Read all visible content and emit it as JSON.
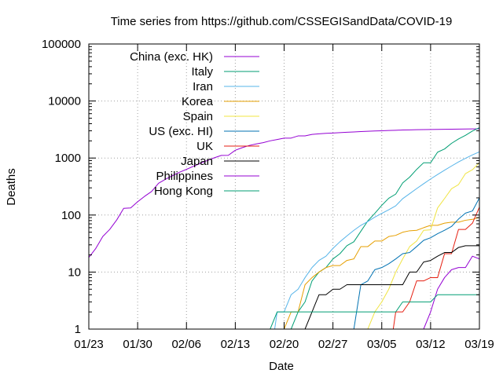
{
  "chart_data": {
    "type": "line",
    "title": "Time series from https://github.com/CSSEGISandData/COVID-19",
    "xlabel": "Date",
    "ylabel": "Deaths",
    "yscale": "log",
    "ylim": [
      1,
      100000
    ],
    "xlim": [
      "2020-01-23",
      "2020-03-19"
    ],
    "grid": true,
    "legend_position": "top-left",
    "x_ticks": [
      {
        "date": "2020-01-23",
        "label": "01/23"
      },
      {
        "date": "2020-01-30",
        "label": "01/30"
      },
      {
        "date": "2020-02-06",
        "label": "02/06"
      },
      {
        "date": "2020-02-13",
        "label": "02/13"
      },
      {
        "date": "2020-02-20",
        "label": "02/20"
      },
      {
        "date": "2020-02-27",
        "label": "02/27"
      },
      {
        "date": "2020-03-05",
        "label": "03/05"
      },
      {
        "date": "2020-03-12",
        "label": "03/12"
      },
      {
        "date": "2020-03-19",
        "label": "03/19"
      }
    ],
    "y_ticks": [
      {
        "value": 1,
        "label": "1"
      },
      {
        "value": 10,
        "label": "10"
      },
      {
        "value": 100,
        "label": "100"
      },
      {
        "value": 1000,
        "label": "1000"
      },
      {
        "value": 10000,
        "label": "10000"
      },
      {
        "value": 100000,
        "label": "100000"
      }
    ],
    "series": [
      {
        "name": "China (exc. HK)",
        "color": "#9400d3",
        "points": [
          [
            "2020-01-23",
            18
          ],
          [
            "2020-01-24",
            26
          ],
          [
            "2020-01-25",
            42
          ],
          [
            "2020-01-26",
            56
          ],
          [
            "2020-01-27",
            82
          ],
          [
            "2020-01-28",
            131
          ],
          [
            "2020-01-29",
            133
          ],
          [
            "2020-01-30",
            171
          ],
          [
            "2020-01-31",
            213
          ],
          [
            "2020-02-01",
            259
          ],
          [
            "2020-02-02",
            361
          ],
          [
            "2020-02-03",
            425
          ],
          [
            "2020-02-04",
            491
          ],
          [
            "2020-02-05",
            563
          ],
          [
            "2020-02-06",
            633
          ],
          [
            "2020-02-07",
            718
          ],
          [
            "2020-02-08",
            805
          ],
          [
            "2020-02-09",
            905
          ],
          [
            "2020-02-10",
            1011
          ],
          [
            "2020-02-11",
            1111
          ],
          [
            "2020-02-12",
            1116
          ],
          [
            "2020-02-13",
            1368
          ],
          [
            "2020-02-14",
            1520
          ],
          [
            "2020-02-15",
            1662
          ],
          [
            "2020-02-16",
            1765
          ],
          [
            "2020-02-17",
            1863
          ],
          [
            "2020-02-18",
            2002
          ],
          [
            "2020-02-19",
            2114
          ],
          [
            "2020-02-20",
            2236
          ],
          [
            "2020-02-21",
            2236
          ],
          [
            "2020-02-22",
            2441
          ],
          [
            "2020-02-23",
            2443
          ],
          [
            "2020-02-24",
            2593
          ],
          [
            "2020-02-25",
            2663
          ],
          [
            "2020-02-26",
            2715
          ],
          [
            "2020-02-27",
            2744
          ],
          [
            "2020-02-28",
            2788
          ],
          [
            "2020-02-29",
            2835
          ],
          [
            "2020-03-01",
            2870
          ],
          [
            "2020-03-02",
            2912
          ],
          [
            "2020-03-03",
            2943
          ],
          [
            "2020-03-04",
            2981
          ],
          [
            "2020-03-05",
            3012
          ],
          [
            "2020-03-06",
            3042
          ],
          [
            "2020-03-07",
            3070
          ],
          [
            "2020-03-08",
            3097
          ],
          [
            "2020-03-09",
            3119
          ],
          [
            "2020-03-10",
            3136
          ],
          [
            "2020-03-11",
            3158
          ],
          [
            "2020-03-12",
            3169
          ],
          [
            "2020-03-13",
            3176
          ],
          [
            "2020-03-14",
            3189
          ],
          [
            "2020-03-15",
            3199
          ],
          [
            "2020-03-16",
            3213
          ],
          [
            "2020-03-17",
            3226
          ],
          [
            "2020-03-18",
            3237
          ],
          [
            "2020-03-19",
            3245
          ]
        ]
      },
      {
        "name": "Italy",
        "color": "#009e73",
        "points": [
          [
            "2020-02-21",
            1
          ],
          [
            "2020-02-22",
            2
          ],
          [
            "2020-02-23",
            3
          ],
          [
            "2020-02-24",
            7
          ],
          [
            "2020-02-25",
            10
          ],
          [
            "2020-02-26",
            12
          ],
          [
            "2020-02-27",
            17
          ],
          [
            "2020-02-28",
            21
          ],
          [
            "2020-02-29",
            29
          ],
          [
            "2020-03-01",
            34
          ],
          [
            "2020-03-02",
            52
          ],
          [
            "2020-03-03",
            79
          ],
          [
            "2020-03-04",
            107
          ],
          [
            "2020-03-05",
            148
          ],
          [
            "2020-03-06",
            197
          ],
          [
            "2020-03-07",
            233
          ],
          [
            "2020-03-08",
            366
          ],
          [
            "2020-03-09",
            463
          ],
          [
            "2020-03-10",
            631
          ],
          [
            "2020-03-11",
            827
          ],
          [
            "2020-03-12",
            827
          ],
          [
            "2020-03-13",
            1266
          ],
          [
            "2020-03-14",
            1441
          ],
          [
            "2020-03-15",
            1809
          ],
          [
            "2020-03-16",
            2158
          ],
          [
            "2020-03-17",
            2503
          ],
          [
            "2020-03-18",
            2978
          ],
          [
            "2020-03-19",
            3405
          ]
        ]
      },
      {
        "name": "Iran",
        "color": "#56b4e9",
        "points": [
          [
            "2020-02-19",
            2
          ],
          [
            "2020-02-20",
            2
          ],
          [
            "2020-02-21",
            4
          ],
          [
            "2020-02-22",
            5
          ],
          [
            "2020-02-23",
            8
          ],
          [
            "2020-02-24",
            12
          ],
          [
            "2020-02-25",
            16
          ],
          [
            "2020-02-26",
            19
          ],
          [
            "2020-02-27",
            26
          ],
          [
            "2020-02-28",
            34
          ],
          [
            "2020-02-29",
            43
          ],
          [
            "2020-03-01",
            54
          ],
          [
            "2020-03-02",
            66
          ],
          [
            "2020-03-03",
            77
          ],
          [
            "2020-03-04",
            92
          ],
          [
            "2020-03-05",
            107
          ],
          [
            "2020-03-06",
            124
          ],
          [
            "2020-03-07",
            145
          ],
          [
            "2020-03-08",
            194
          ],
          [
            "2020-03-09",
            237
          ],
          [
            "2020-03-10",
            291
          ],
          [
            "2020-03-11",
            354
          ],
          [
            "2020-03-12",
            429
          ],
          [
            "2020-03-13",
            514
          ],
          [
            "2020-03-14",
            611
          ],
          [
            "2020-03-15",
            724
          ],
          [
            "2020-03-16",
            853
          ],
          [
            "2020-03-17",
            988
          ],
          [
            "2020-03-18",
            1135
          ],
          [
            "2020-03-19",
            1284
          ]
        ]
      },
      {
        "name": "Korea",
        "color": "#e69f00",
        "points": [
          [
            "2020-02-20",
            1
          ],
          [
            "2020-02-21",
            2
          ],
          [
            "2020-02-22",
            2
          ],
          [
            "2020-02-23",
            6
          ],
          [
            "2020-02-24",
            8
          ],
          [
            "2020-02-25",
            10
          ],
          [
            "2020-02-26",
            12
          ],
          [
            "2020-02-27",
            13
          ],
          [
            "2020-02-28",
            13
          ],
          [
            "2020-02-29",
            16
          ],
          [
            "2020-03-01",
            17
          ],
          [
            "2020-03-02",
            28
          ],
          [
            "2020-03-03",
            28
          ],
          [
            "2020-03-04",
            35
          ],
          [
            "2020-03-05",
            35
          ],
          [
            "2020-03-06",
            42
          ],
          [
            "2020-03-07",
            44
          ],
          [
            "2020-03-08",
            50
          ],
          [
            "2020-03-09",
            53
          ],
          [
            "2020-03-10",
            54
          ],
          [
            "2020-03-11",
            60
          ],
          [
            "2020-03-12",
            66
          ],
          [
            "2020-03-13",
            66
          ],
          [
            "2020-03-14",
            72
          ],
          [
            "2020-03-15",
            75
          ],
          [
            "2020-03-16",
            75
          ],
          [
            "2020-03-17",
            81
          ],
          [
            "2020-03-18",
            84
          ],
          [
            "2020-03-19",
            91
          ]
        ]
      },
      {
        "name": "Spain",
        "color": "#f0e442",
        "points": [
          [
            "2020-03-03",
            1
          ],
          [
            "2020-03-04",
            2
          ],
          [
            "2020-03-05",
            3
          ],
          [
            "2020-03-06",
            5
          ],
          [
            "2020-03-07",
            10
          ],
          [
            "2020-03-08",
            17
          ],
          [
            "2020-03-09",
            28
          ],
          [
            "2020-03-10",
            35
          ],
          [
            "2020-03-11",
            54
          ],
          [
            "2020-03-12",
            55
          ],
          [
            "2020-03-13",
            133
          ],
          [
            "2020-03-14",
            195
          ],
          [
            "2020-03-15",
            289
          ],
          [
            "2020-03-16",
            342
          ],
          [
            "2020-03-17",
            533
          ],
          [
            "2020-03-18",
            623
          ],
          [
            "2020-03-19",
            830
          ]
        ]
      },
      {
        "name": "US (exc. HI)",
        "color": "#0072b2",
        "points": [
          [
            "2020-02-29",
            1
          ],
          [
            "2020-03-01",
            1
          ],
          [
            "2020-03-02",
            6
          ],
          [
            "2020-03-03",
            7
          ],
          [
            "2020-03-04",
            11
          ],
          [
            "2020-03-05",
            12
          ],
          [
            "2020-03-06",
            14
          ],
          [
            "2020-03-07",
            17
          ],
          [
            "2020-03-08",
            21
          ],
          [
            "2020-03-09",
            22
          ],
          [
            "2020-03-10",
            28
          ],
          [
            "2020-03-11",
            36
          ],
          [
            "2020-03-12",
            40
          ],
          [
            "2020-03-13",
            47
          ],
          [
            "2020-03-14",
            54
          ],
          [
            "2020-03-15",
            63
          ],
          [
            "2020-03-16",
            85
          ],
          [
            "2020-03-17",
            108
          ],
          [
            "2020-03-18",
            118
          ],
          [
            "2020-03-19",
            200
          ]
        ]
      },
      {
        "name": "UK",
        "color": "#e51e10",
        "points": [
          [
            "2020-03-07",
            2
          ],
          [
            "2020-03-08",
            2
          ],
          [
            "2020-03-09",
            3
          ],
          [
            "2020-03-10",
            7
          ],
          [
            "2020-03-11",
            7
          ],
          [
            "2020-03-12",
            8
          ],
          [
            "2020-03-13",
            8
          ],
          [
            "2020-03-14",
            21
          ],
          [
            "2020-03-15",
            21
          ],
          [
            "2020-03-16",
            56
          ],
          [
            "2020-03-17",
            56
          ],
          [
            "2020-03-18",
            72
          ],
          [
            "2020-03-19",
            138
          ]
        ]
      },
      {
        "name": "Japan",
        "color": "#000000",
        "points": [
          [
            "2020-02-13",
            1
          ],
          [
            "2020-02-22",
            1
          ],
          [
            "2020-02-23",
            1
          ],
          [
            "2020-02-24",
            2
          ],
          [
            "2020-02-25",
            4
          ],
          [
            "2020-02-26",
            4
          ],
          [
            "2020-02-27",
            5
          ],
          [
            "2020-02-28",
            5
          ],
          [
            "2020-02-29",
            6
          ],
          [
            "2020-03-01",
            6
          ],
          [
            "2020-03-02",
            6
          ],
          [
            "2020-03-03",
            6
          ],
          [
            "2020-03-04",
            6
          ],
          [
            "2020-03-05",
            6
          ],
          [
            "2020-03-06",
            6
          ],
          [
            "2020-03-07",
            6
          ],
          [
            "2020-03-08",
            6
          ],
          [
            "2020-03-09",
            10
          ],
          [
            "2020-03-10",
            10
          ],
          [
            "2020-03-11",
            15
          ],
          [
            "2020-03-12",
            16
          ],
          [
            "2020-03-13",
            19
          ],
          [
            "2020-03-14",
            22
          ],
          [
            "2020-03-15",
            22
          ],
          [
            "2020-03-16",
            27
          ],
          [
            "2020-03-17",
            29
          ],
          [
            "2020-03-18",
            29
          ],
          [
            "2020-03-19",
            29
          ]
        ]
      },
      {
        "name": "Philippines",
        "color": "#9400d3",
        "points": [
          [
            "2020-03-11",
            1
          ],
          [
            "2020-03-12",
            2
          ],
          [
            "2020-03-13",
            5
          ],
          [
            "2020-03-14",
            8
          ],
          [
            "2020-03-15",
            11
          ],
          [
            "2020-03-16",
            12
          ],
          [
            "2020-03-17",
            12
          ],
          [
            "2020-03-18",
            19
          ],
          [
            "2020-03-19",
            17
          ]
        ]
      },
      {
        "name": "Hong Kong",
        "color": "#009e73",
        "points": [
          [
            "2020-02-18",
            1
          ],
          [
            "2020-02-19",
            2
          ],
          [
            "2020-02-20",
            2
          ],
          [
            "2020-02-21",
            2
          ],
          [
            "2020-02-22",
            2
          ],
          [
            "2020-02-23",
            2
          ],
          [
            "2020-02-24",
            2
          ],
          [
            "2020-02-25",
            2
          ],
          [
            "2020-02-26",
            2
          ],
          [
            "2020-02-27",
            2
          ],
          [
            "2020-02-28",
            2
          ],
          [
            "2020-02-29",
            2
          ],
          [
            "2020-03-01",
            2
          ],
          [
            "2020-03-02",
            2
          ],
          [
            "2020-03-03",
            2
          ],
          [
            "2020-03-04",
            2
          ],
          [
            "2020-03-05",
            2
          ],
          [
            "2020-03-06",
            2
          ],
          [
            "2020-03-07",
            2
          ],
          [
            "2020-03-08",
            3
          ],
          [
            "2020-03-09",
            3
          ],
          [
            "2020-03-10",
            3
          ],
          [
            "2020-03-11",
            3
          ],
          [
            "2020-03-12",
            3
          ],
          [
            "2020-03-13",
            4
          ],
          [
            "2020-03-14",
            4
          ],
          [
            "2020-03-15",
            4
          ],
          [
            "2020-03-16",
            4
          ],
          [
            "2020-03-17",
            4
          ],
          [
            "2020-03-18",
            4
          ],
          [
            "2020-03-19",
            4
          ]
        ]
      }
    ]
  }
}
